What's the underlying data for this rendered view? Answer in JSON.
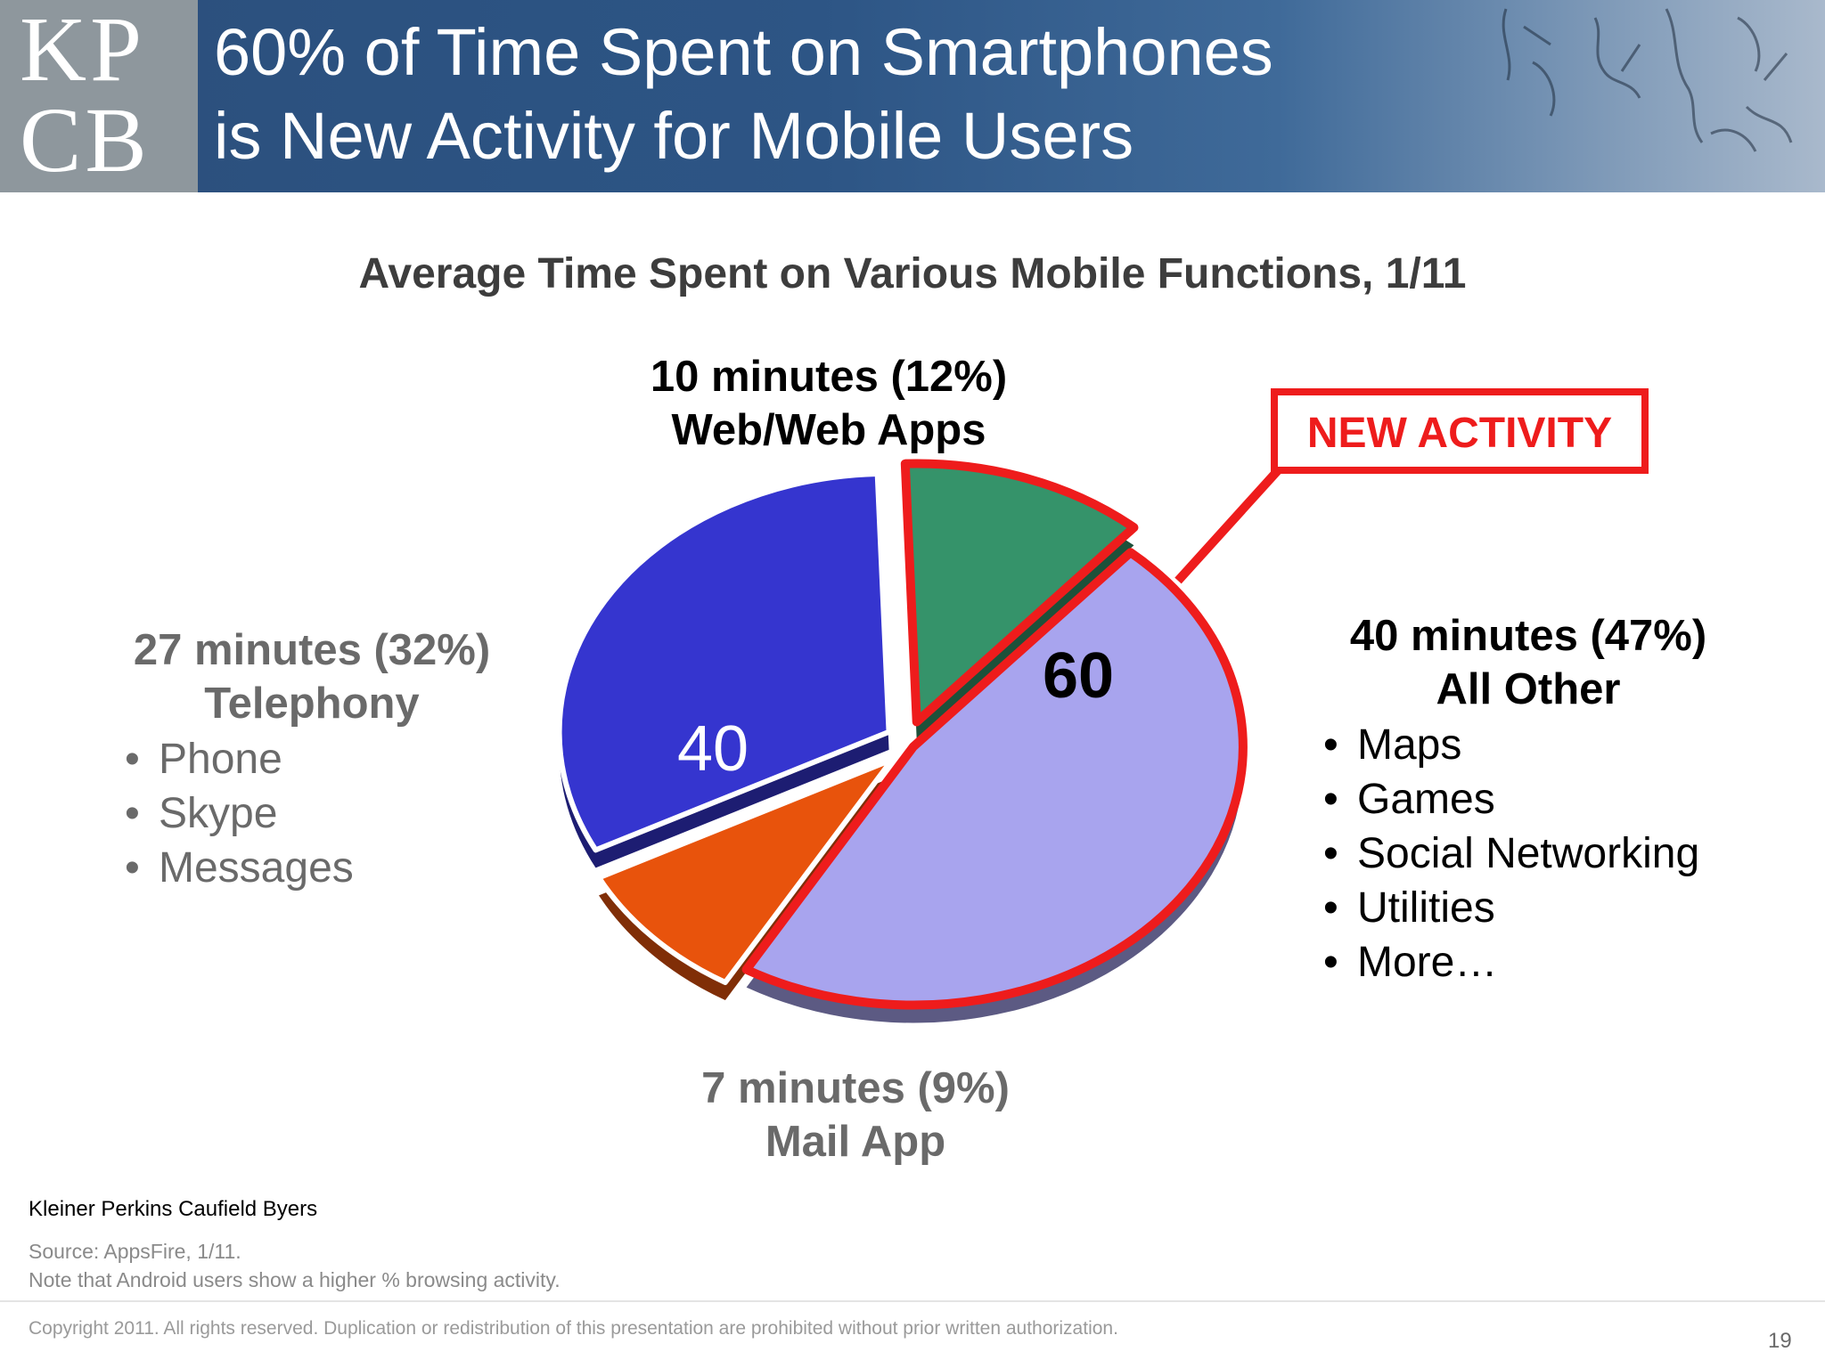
{
  "header": {
    "logo": [
      "KP",
      "CB"
    ],
    "title_lines": [
      "60% of Time Spent on Smartphones",
      "is New Activity for Mobile Users"
    ]
  },
  "colors": {
    "telephony": "#3535cf",
    "web": "#35936a",
    "mail": "#e8530c",
    "all_other": "#a8a4ee",
    "highlight": "#ee1c1c"
  },
  "chart_data": {
    "type": "pie",
    "title": "Average Time Spent on Various Mobile Functions, 1/11",
    "slices": [
      {
        "label": "Web/Web Apps",
        "minutes": 10,
        "percent": 12,
        "color": "#35936a"
      },
      {
        "label": "All Other",
        "minutes": 40,
        "percent": 47,
        "color": "#a8a4ee"
      },
      {
        "label": "Mail App",
        "minutes": 7,
        "percent": 9,
        "color": "#e8530c"
      },
      {
        "label": "Telephony",
        "minutes": 27,
        "percent": 32,
        "color": "#3535cf"
      }
    ],
    "group_values": {
      "existing_activity": "40",
      "new_activity": "60"
    },
    "callout": "NEW ACTIVITY"
  },
  "labels": {
    "web": {
      "value": "10 minutes (12%)",
      "name": "Web/Web Apps"
    },
    "telephony": {
      "value": "27 minutes (32%)",
      "name": "Telephony",
      "items": [
        "Phone",
        "Skype",
        "Messages"
      ]
    },
    "all_other": {
      "value": "40 minutes (47%)",
      "name": "All Other",
      "items": [
        "Maps",
        "Games",
        "Social Networking",
        "Utilities",
        "More…"
      ]
    },
    "mail": {
      "value": "7 minutes (9%)",
      "name": "Mail App"
    },
    "bullet": "•"
  },
  "footer": {
    "company": "Kleiner Perkins Caufield Byers",
    "source": "Source: AppsFire, 1/11.",
    "note": "Note that Android users show a higher % browsing activity.",
    "copyright": "Copyright 2011. All rights reserved. Duplication or redistribution of this presentation are prohibited without prior written authorization.",
    "page": "19"
  }
}
